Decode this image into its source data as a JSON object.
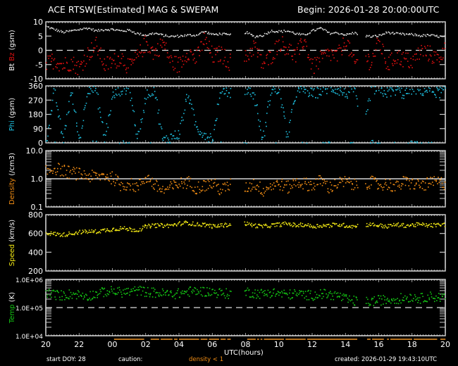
{
  "header": {
    "title": "ACE RTSW[Estimated] MAG & SWEPAM",
    "begin": "Begin: 2026-01-28 20:00:00UTC"
  },
  "footer": {
    "start_doy": "start DOY:  28",
    "caution": "caution:",
    "caution_note": "density < 1",
    "xlabel": "UTC(hours)",
    "created": "created: 2026-01-29 19:43:10UTC"
  },
  "colors": {
    "background": "#000000",
    "axis": "#ffffff",
    "bt": "#e0e0e0",
    "bz": "#e01010",
    "phi": "#1ec0e0",
    "density": "#f08c14",
    "speed": "#f0e614",
    "temp": "#14c814",
    "caution_bar": "#b4701c"
  },
  "chart_data": [
    {
      "type": "scatter",
      "panel": "mag",
      "ylabel_parts": [
        "Bt",
        "Bz",
        "(gsm)"
      ],
      "ylim": [
        -10,
        10
      ],
      "yticks": [
        10,
        5,
        0,
        -5,
        -10
      ],
      "reference_line": 0,
      "x_unit": "hours since 2026-01-28 20:00 UTC",
      "series": [
        {
          "name": "Bt",
          "color": "#e0e0e0",
          "x": [
            0,
            0.5,
            1,
            1.5,
            2,
            2.5,
            3,
            3.5,
            4,
            4.5,
            5,
            5.5,
            6,
            6.5,
            7,
            7.5,
            8,
            8.5,
            9,
            9.5,
            10,
            10.5,
            11,
            11.5,
            12,
            12.5,
            13,
            13.5,
            14,
            14.5,
            15,
            15.5,
            16,
            16.5,
            17,
            17.5,
            18,
            18.5,
            19,
            19.5,
            20,
            20.5,
            21,
            21.5,
            22,
            22.5,
            23,
            23.5,
            24
          ],
          "values": [
            8.5,
            7.5,
            6.5,
            7,
            7.5,
            8,
            7,
            7.5,
            7.5,
            7,
            7.2,
            6,
            5.5,
            6.2,
            5.5,
            5,
            5.2,
            5.5,
            5.5,
            6.8,
            5.7,
            6,
            5.5,
            6,
            6.5,
            5,
            5.4,
            7,
            6.8,
            7,
            6,
            5.5,
            7,
            8,
            6.2,
            6.3,
            5.6,
            6.3,
            5.4,
            5,
            5.3,
            6.5,
            6,
            5.8,
            5.7,
            5.3,
            5.5,
            5.1,
            4.8
          ]
        },
        {
          "name": "Bz",
          "color": "#e01010",
          "x": [
            0,
            0.5,
            1,
            1.5,
            2,
            2.5,
            3,
            3.5,
            4,
            4.5,
            5,
            5.5,
            6,
            6.5,
            7,
            7.5,
            8,
            8.5,
            9,
            9.5,
            10,
            10.5,
            11,
            11.5,
            12,
            12.5,
            13,
            13.5,
            14,
            14.5,
            15,
            15.5,
            16,
            16.5,
            17,
            17.5,
            18,
            18.5,
            19,
            19.5,
            20,
            20.5,
            21,
            21.5,
            22,
            22.5,
            23,
            23.5,
            24
          ],
          "values": [
            -5,
            -3,
            -5,
            -4,
            -6,
            -1,
            2,
            -5,
            -4,
            -2,
            -6,
            -2,
            3,
            -1,
            3,
            -4,
            -5,
            0,
            -3,
            4,
            -2,
            -1,
            -4,
            2,
            -3,
            2,
            -5,
            -2,
            3,
            1,
            -2,
            4,
            -6,
            -3,
            -1,
            -2,
            4,
            -5,
            -1,
            -4,
            3,
            -5,
            -2,
            -3,
            -4,
            0,
            -1,
            -3,
            1
          ]
        }
      ]
    },
    {
      "type": "scatter",
      "panel": "phi",
      "ylabel": "Phi (gsm)",
      "ylim": [
        0,
        360
      ],
      "yticks": [
        360,
        270,
        180,
        90,
        0
      ],
      "series": [
        {
          "name": "Phi",
          "color": "#1ec0e0",
          "x": [
            0,
            0.5,
            1,
            1.5,
            2,
            2.5,
            3,
            3.5,
            4,
            4.5,
            5,
            5.5,
            6,
            6.5,
            7,
            7.5,
            8,
            8.5,
            9,
            9.5,
            10,
            10.5,
            11,
            11.5,
            12,
            12.5,
            13,
            13.5,
            14,
            14.5,
            15,
            15.5,
            16,
            16.5,
            17,
            17.5,
            18,
            18.5,
            19,
            19.5,
            20,
            20.5,
            21,
            21.5,
            22,
            22.5,
            23,
            23.5,
            24
          ],
          "values": [
            20,
            340,
            10,
            330,
            15,
            350,
            340,
            20,
            300,
            340,
            350,
            20,
            310,
            345,
            15,
            40,
            60,
            320,
            100,
            60,
            30,
            350,
            320,
            330,
            345,
            300,
            10,
            340,
            330,
            40,
            320,
            340,
            310,
            330,
            350,
            340,
            310,
            345,
            20,
            350,
            330,
            320,
            340,
            310,
            350,
            330,
            340,
            320,
            330
          ]
        }
      ]
    },
    {
      "type": "scatter",
      "panel": "density",
      "ylabel": "Density (/cm3)",
      "yscale": "log",
      "ylim": [
        0.1,
        10.0
      ],
      "yticks": [
        "10.0",
        "1.0",
        "0.1"
      ],
      "reference_line": 1.0,
      "series": [
        {
          "name": "Density",
          "color": "#f08c14",
          "x": [
            0,
            0.5,
            1,
            1.5,
            2,
            2.5,
            3,
            3.5,
            4,
            4.5,
            5,
            5.5,
            6,
            6.5,
            7,
            7.5,
            8,
            8.5,
            9,
            9.5,
            10,
            10.5,
            11,
            11.5,
            12,
            12.5,
            13,
            13.5,
            14,
            14.5,
            15,
            15.5,
            16,
            16.5,
            17,
            17.5,
            18,
            18.5,
            19,
            19.5,
            20,
            20.5,
            21,
            21.5,
            22,
            22.5,
            23,
            23.5,
            24
          ],
          "values": [
            1.8,
            2.5,
            2.0,
            1.7,
            1.5,
            1.3,
            1.2,
            1.4,
            1.1,
            0.6,
            0.7,
            0.5,
            1.2,
            0.6,
            0.4,
            0.5,
            0.7,
            0.8,
            0.5,
            0.6,
            0.7,
            0.4,
            0.6,
            0.8,
            0.5,
            0.7,
            0.4,
            0.6,
            0.7,
            0.5,
            0.8,
            0.7,
            0.6,
            0.9,
            0.5,
            0.7,
            0.8,
            0.6,
            0.7,
            0.8,
            0.6,
            0.7,
            0.5,
            0.8,
            0.7,
            0.6,
            0.7,
            0.8,
            0.7
          ]
        }
      ]
    },
    {
      "type": "scatter",
      "panel": "speed",
      "ylabel": "Speed (km/s)",
      "ylim": [
        200,
        800
      ],
      "yticks": [
        800,
        600,
        400,
        200
      ],
      "series": [
        {
          "name": "Speed",
          "color": "#f0e614",
          "x": [
            0,
            0.5,
            1,
            1.5,
            2,
            2.5,
            3,
            3.5,
            4,
            4.5,
            5,
            5.5,
            6,
            6.5,
            7,
            7.5,
            8,
            8.5,
            9,
            9.5,
            10,
            10.5,
            11,
            11.5,
            12,
            12.5,
            13,
            13.5,
            14,
            14.5,
            15,
            15.5,
            16,
            16.5,
            17,
            17.5,
            18,
            18.5,
            19,
            19.5,
            20,
            20.5,
            21,
            21.5,
            22,
            22.5,
            23,
            23.5,
            24
          ],
          "values": [
            610,
            600,
            590,
            605,
            620,
            625,
            625,
            640,
            650,
            660,
            650,
            640,
            680,
            690,
            690,
            690,
            710,
            720,
            700,
            700,
            680,
            690,
            700,
            720,
            710,
            690,
            680,
            690,
            700,
            710,
            690,
            700,
            680,
            690,
            690,
            700,
            690,
            680,
            700,
            700,
            690,
            680,
            700,
            690,
            695,
            700,
            690,
            695,
            700
          ]
        }
      ]
    },
    {
      "type": "scatter",
      "panel": "temp",
      "ylabel": "Temp (K)",
      "yscale": "log",
      "ylim": [
        10000,
        1000000
      ],
      "yticks": [
        "1.0E+06",
        "1.0E+05",
        "1.0E+04"
      ],
      "reference_line": 100000,
      "series": [
        {
          "name": "Temp",
          "color": "#14c814",
          "x": [
            0,
            0.5,
            1,
            1.5,
            2,
            2.5,
            3,
            3.5,
            4,
            4.5,
            5,
            5.5,
            6,
            6.5,
            7,
            7.5,
            8,
            8.5,
            9,
            9.5,
            10,
            10.5,
            11,
            11.5,
            12,
            12.5,
            13,
            13.5,
            14,
            14.5,
            15,
            15.5,
            16,
            16.5,
            17,
            17.5,
            18,
            18.5,
            19,
            19.5,
            20,
            20.5,
            21,
            21.5,
            22,
            22.5,
            23,
            23.5,
            24
          ],
          "values": [
            350000,
            300000,
            280000,
            320000,
            300000,
            270000,
            320000,
            380000,
            400000,
            360000,
            380000,
            420000,
            380000,
            350000,
            330000,
            310000,
            330000,
            380000,
            400000,
            390000,
            370000,
            340000,
            320000,
            360000,
            380000,
            340000,
            320000,
            360000,
            330000,
            300000,
            320000,
            300000,
            280000,
            320000,
            300000,
            280000,
            200000,
            180000,
            160000,
            170000,
            190000,
            200000,
            210000,
            230000,
            250000,
            220000,
            260000,
            240000,
            250000
          ]
        }
      ]
    }
  ],
  "xaxis": {
    "label": "UTC(hours)",
    "ticks": [
      "20",
      "22",
      "00",
      "02",
      "04",
      "06",
      "08",
      "10",
      "12",
      "14",
      "16",
      "18",
      "20"
    ]
  },
  "data_gaps": [
    [
      11.1,
      11.9
    ],
    [
      18.7,
      19.2
    ]
  ]
}
